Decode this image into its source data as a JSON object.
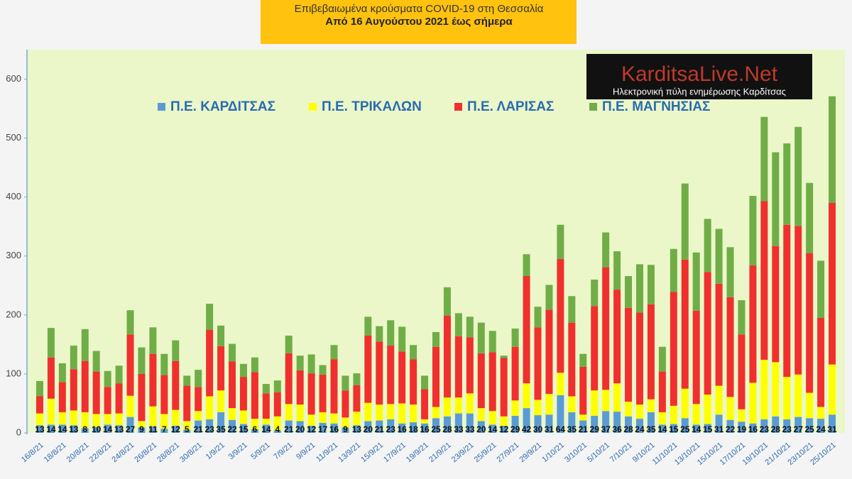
{
  "chart_data": {
    "type": "stacked_bar",
    "title": "Επιβεβαιωμένα κρούσματα COVID-19 στη Θεσσαλία",
    "subtitle": "Από 16 Αυγούστου 2021 έως σήμερα",
    "annotations": [
      "KarditsaLive.Net",
      "Ηλεκτρονική πύλη ενημέρωσης Καρδίτσας"
    ],
    "categories": [
      "16/8/21",
      null,
      "18/8/21",
      null,
      "20/8/21",
      null,
      "22/8/21",
      null,
      "24/8/21",
      null,
      "26/8/21",
      null,
      "28/8/21",
      null,
      "30/8/21",
      null,
      "1/9/21",
      null,
      "3/9/21",
      null,
      "5/9/21",
      null,
      "7/9/21",
      null,
      "9/9/21",
      null,
      "11/9/21",
      null,
      "13/9/21",
      null,
      "15/9/21",
      null,
      "17/9/21",
      null,
      "19/9/21",
      null,
      "21/9/21",
      null,
      "23/9/21",
      null,
      "25/9/21",
      null,
      "27/9/21",
      null,
      "29/9/21",
      null,
      "1/10/21",
      null,
      "3/10/21",
      null,
      "5/10/21",
      null,
      "7/10/21",
      null,
      "9/10/21",
      null,
      "11/10/21",
      null,
      "13/10/21",
      null,
      "15/10/21",
      null,
      "17/10/21",
      null,
      "19/10/21",
      null,
      "21/10/21",
      null,
      "23/10/21",
      null,
      "25/10/21"
    ],
    "series": [
      {
        "name": "Π.Ε. ΚΑΡΔΙΤΣΑΣ",
        "color": "#5b9bd5",
        "data_labels": true,
        "values": [
          13,
          14,
          14,
          13,
          8,
          10,
          14,
          13,
          27,
          9,
          11,
          7,
          12,
          5,
          21,
          23,
          35,
          22,
          15,
          6,
          14,
          4,
          21,
          20,
          12,
          17,
          16,
          9,
          13,
          20,
          21,
          23,
          16,
          18,
          16,
          25,
          28,
          33,
          33,
          20,
          14,
          12,
          29,
          42,
          30,
          31,
          64,
          35,
          21,
          29,
          37,
          36,
          28,
          24,
          35,
          14,
          15,
          25,
          14,
          15,
          31,
          22,
          19,
          16,
          23,
          28,
          23,
          27,
          25,
          24,
          31
        ]
      },
      {
        "name": "Π.Ε. ΤΡΙΚΑΛΩΝ",
        "color": "#ffff00",
        "values": [
          20,
          44,
          21,
          25,
          27,
          22,
          18,
          20,
          36,
          11,
          34,
          25,
          27,
          15,
          16,
          39,
          37,
          20,
          23,
          18,
          10,
          24,
          28,
          28,
          19,
          18,
          17,
          17,
          23,
          31,
          27,
          26,
          34,
          30,
          7,
          19,
          32,
          27,
          34,
          22,
          23,
          16,
          26,
          42,
          26,
          35,
          38,
          27,
          10,
          43,
          36,
          48,
          25,
          24,
          22,
          21,
          31,
          50,
          35,
          50,
          49,
          39,
          21,
          69,
          101,
          92,
          72,
          72,
          43,
          20,
          85
        ]
      },
      {
        "name": "Π.Ε. ΛΑΡΙΣΑΣ",
        "color": "#f0302e",
        "values": [
          29,
          70,
          51,
          70,
          87,
          72,
          46,
          51,
          104,
          80,
          89,
          66,
          83,
          60,
          41,
          113,
          75,
          79,
          57,
          79,
          43,
          41,
          86,
          58,
          70,
          64,
          92,
          46,
          45,
          114,
          107,
          99,
          88,
          77,
          51,
          102,
          139,
          104,
          95,
          93,
          100,
          99,
          91,
          182,
          123,
          143,
          193,
          125,
          81,
          143,
          208,
          159,
          159,
          156,
          161,
          69,
          193,
          219,
          158,
          208,
          173,
          169,
          127,
          199,
          269,
          197,
          258,
          252,
          237,
          151,
          274
        ]
      },
      {
        "name": "Π.Ε. ΜΑΓΝΗΣΙΑΣ",
        "color": "#70ad47",
        "values": [
          26,
          50,
          32,
          40,
          54,
          35,
          27,
          30,
          41,
          45,
          45,
          36,
          35,
          17,
          29,
          44,
          35,
          30,
          22,
          25,
          16,
          20,
          30,
          25,
          32,
          16,
          24,
          25,
          20,
          32,
          26,
          43,
          42,
          24,
          23,
          25,
          48,
          39,
          35,
          52,
          36,
          4,
          31,
          37,
          35,
          42,
          58,
          45,
          22,
          45,
          59,
          65,
          54,
          82,
          67,
          42,
          73,
          129,
          99,
          90,
          93,
          85,
          58,
          118,
          143,
          159,
          138,
          168,
          119,
          97,
          181
        ]
      }
    ],
    "ylim": [
      0,
      650
    ],
    "yticks": [
      0,
      100,
      200,
      300,
      400,
      500,
      600
    ],
    "grid": false,
    "legend": "top"
  }
}
